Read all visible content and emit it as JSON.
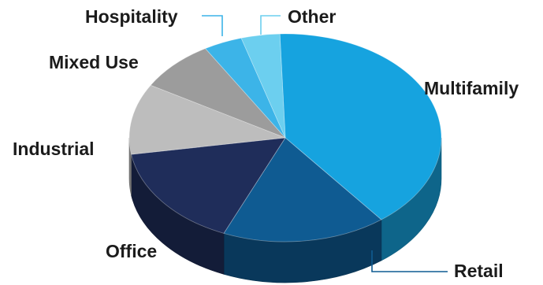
{
  "chart_data": {
    "type": "pie",
    "style": "3d-tilted",
    "title": "",
    "legend": "none",
    "slices": [
      {
        "label": "Multifamily",
        "value": 40,
        "color": "#16a3df"
      },
      {
        "label": "Retail",
        "value": 17,
        "color": "#0f5b92"
      },
      {
        "label": "Office",
        "value": 16,
        "color": "#1f2d5a"
      },
      {
        "label": "Industrial",
        "value": 11,
        "color": "#bdbdbd"
      },
      {
        "label": "Mixed Use",
        "value": 8,
        "color": "#9c9c9c"
      },
      {
        "label": "Hospitality",
        "value": 4,
        "color": "#3cb4e8"
      },
      {
        "label": "Other",
        "value": 4,
        "color": "#6ccfef"
      }
    ]
  }
}
